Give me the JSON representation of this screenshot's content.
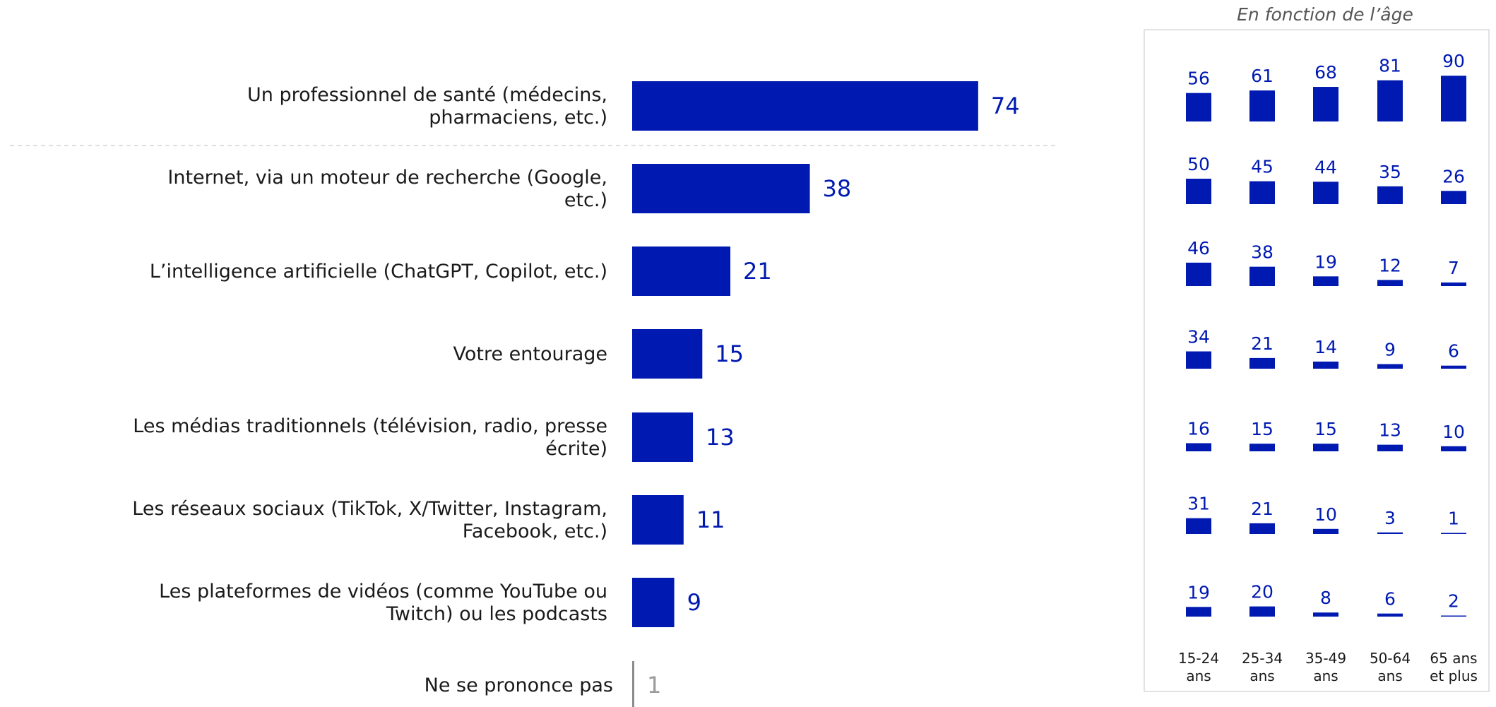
{
  "colors": {
    "bar": "#0019b0",
    "no_opinion_bar": "#8c8c8c",
    "no_opinion_text": "#9a9a9a",
    "divider": "#d4d4d4",
    "panel_border": "#d9d9d9"
  },
  "chart_data": [
    {
      "type": "bar",
      "orientation": "horizontal",
      "categories": [
        [
          "Un professionnel de santé (médecins,",
          "pharmaciens, etc.)"
        ],
        [
          "Internet, via un moteur de recherche (Google,",
          "etc.)"
        ],
        [
          "L’intelligence artificielle (ChatGPT, Copilot, etc.)"
        ],
        [
          "Votre entourage"
        ],
        [
          "Les médias traditionnels (télévision, radio, presse",
          "écrite)"
        ],
        [
          "Les réseaux sociaux (TikTok, X/Twitter, Instagram,",
          "Facebook, etc.)"
        ],
        [
          "Les plateformes de vidéos (comme YouTube ou",
          "Twitch) ou les podcasts"
        ],
        [
          "Ne se prononce pas"
        ]
      ],
      "values": [
        74,
        38,
        21,
        15,
        13,
        11,
        9,
        1
      ],
      "xlim": [
        0,
        100
      ],
      "grid": false
    },
    {
      "type": "bar",
      "title": "En fonction de l’âge",
      "groups": [
        [
          "15-24",
          "ans"
        ],
        [
          "25-34",
          "ans"
        ],
        [
          "35-49",
          "ans"
        ],
        [
          "50-64",
          "ans"
        ],
        [
          "65 ans",
          "et plus"
        ]
      ],
      "values": [
        [
          56,
          61,
          68,
          81,
          90
        ],
        [
          50,
          45,
          44,
          35,
          26
        ],
        [
          46,
          38,
          19,
          12,
          7
        ],
        [
          34,
          21,
          14,
          9,
          6
        ],
        [
          16,
          15,
          15,
          13,
          10
        ],
        [
          31,
          21,
          10,
          3,
          1
        ],
        [
          19,
          20,
          8,
          6,
          2
        ]
      ],
      "grid": false
    }
  ]
}
